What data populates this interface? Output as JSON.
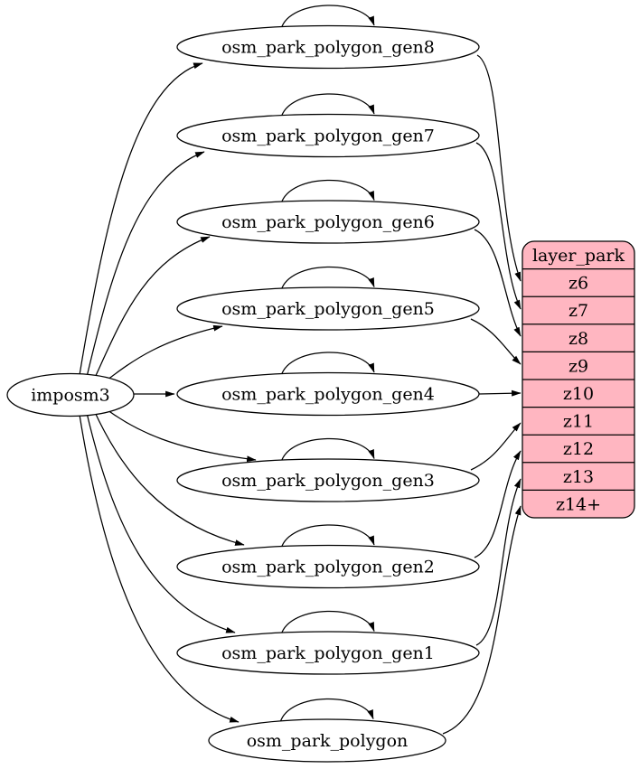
{
  "graph": {
    "source_node": {
      "id": "imposm3",
      "label": "imposm3"
    },
    "table_nodes": [
      {
        "id": "osm_park_polygon_gen8",
        "label": "osm_park_polygon_gen8",
        "self_loop": true,
        "maps_to": "z6"
      },
      {
        "id": "osm_park_polygon_gen7",
        "label": "osm_park_polygon_gen7",
        "self_loop": true,
        "maps_to": "z7"
      },
      {
        "id": "osm_park_polygon_gen6",
        "label": "osm_park_polygon_gen6",
        "self_loop": true,
        "maps_to": "z8"
      },
      {
        "id": "osm_park_polygon_gen5",
        "label": "osm_park_polygon_gen5",
        "self_loop": true,
        "maps_to": "z9"
      },
      {
        "id": "osm_park_polygon_gen4",
        "label": "osm_park_polygon_gen4",
        "self_loop": true,
        "maps_to": "z10"
      },
      {
        "id": "osm_park_polygon_gen3",
        "label": "osm_park_polygon_gen3",
        "self_loop": true,
        "maps_to": "z11"
      },
      {
        "id": "osm_park_polygon_gen2",
        "label": "osm_park_polygon_gen2",
        "self_loop": true,
        "maps_to": "z12"
      },
      {
        "id": "osm_park_polygon_gen1",
        "label": "osm_park_polygon_gen1",
        "self_loop": true,
        "maps_to": "z13"
      },
      {
        "id": "osm_park_polygon",
        "label": "osm_park_polygon",
        "self_loop": true,
        "maps_to": "z14+"
      }
    ],
    "layer_table": {
      "header": "layer_park",
      "rows": [
        {
          "label": "z6"
        },
        {
          "label": "z7"
        },
        {
          "label": "z8"
        },
        {
          "label": "z9"
        },
        {
          "label": "z10"
        },
        {
          "label": "z11"
        },
        {
          "label": "z12"
        },
        {
          "label": "z13"
        },
        {
          "label": "z14+"
        }
      ]
    },
    "colors": {
      "background": "#ffffff",
      "node_fill": "#ffffff",
      "node_stroke": "#000000",
      "edge": "#000000",
      "text": "#000000",
      "layer_table_fill": "#ffb6c1"
    }
  }
}
